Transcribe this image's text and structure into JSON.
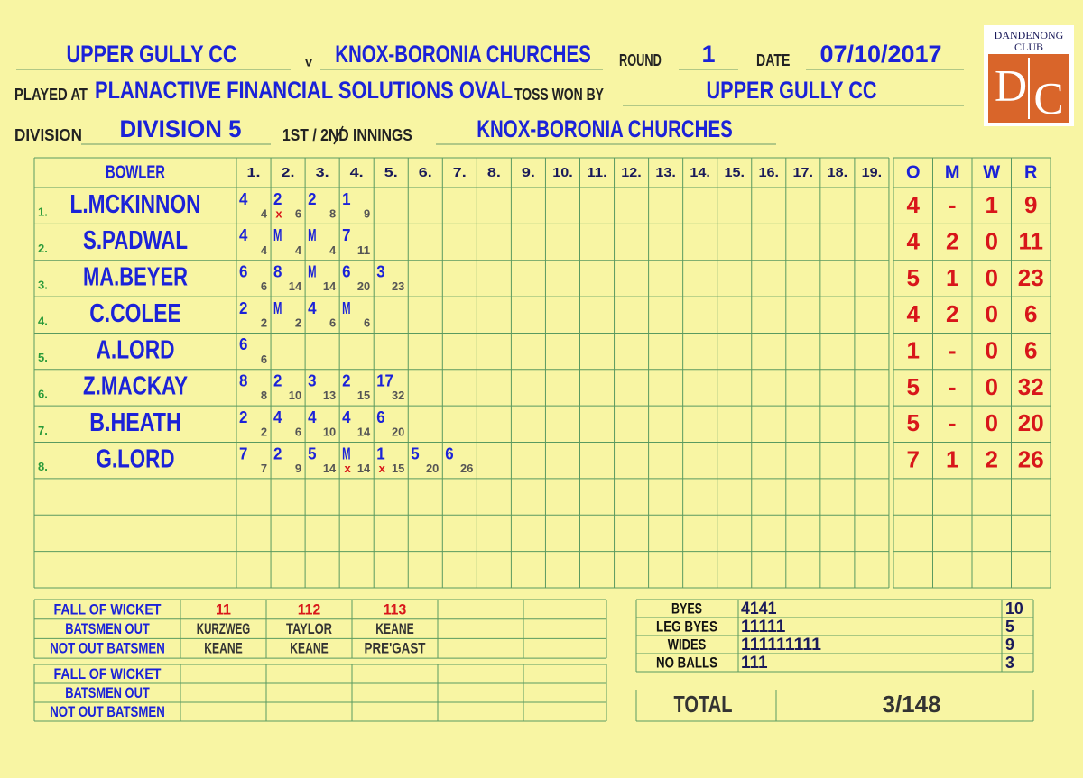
{
  "header": {
    "team1": "UPPER GULLY CC",
    "versus": "v",
    "team2": "KNOX-BORONIA CHURCHES",
    "round_label": "ROUND",
    "round": "1",
    "date_label": "DATE",
    "date": "07/10/2017",
    "ground_label": "PLAYED AT",
    "ground": "PLANACTIVE FINANCIAL SOLUTIONS OVAL",
    "toss_label": "TOSS WON BY",
    "toss": "UPPER GULLY CC",
    "division_label": "DIVISION",
    "division": "DIVISION 5",
    "innings_label": "1ST / 2ND INNINGS",
    "innings": "KNOX-BORONIA CHURCHES"
  },
  "logo": {
    "top": "DANDENONG",
    "club": "CLUB",
    "left": "D",
    "right": "C"
  },
  "bowling": {
    "bowler_label": "BOWLER",
    "over_labels": [
      "1.",
      "2.",
      "3.",
      "4.",
      "5.",
      "6.",
      "7.",
      "8.",
      "9.",
      "10.",
      "11.",
      "12.",
      "13.",
      "14.",
      "15.",
      "16.",
      "17.",
      "18.",
      "19."
    ],
    "stat_labels": [
      "O",
      "M",
      "W",
      "R"
    ],
    "rows": [
      {
        "no": "1.",
        "name": "L.MCKINNON",
        "overs": [
          {
            "runs": "4",
            "total": "4"
          },
          {
            "runs": "2",
            "wicket": "x",
            "total": "6"
          },
          {
            "runs": "2",
            "total": "8"
          },
          {
            "runs": "1",
            "total": "9"
          }
        ],
        "stats": [
          "4",
          "-",
          "1",
          "9"
        ]
      },
      {
        "no": "2.",
        "name": "S.PADWAL",
        "overs": [
          {
            "runs": "4",
            "total": "4"
          },
          {
            "runs": "M",
            "total": "4"
          },
          {
            "runs": "M",
            "total": "4"
          },
          {
            "runs": "7",
            "total": "11"
          }
        ],
        "stats": [
          "4",
          "2",
          "0",
          "11"
        ]
      },
      {
        "no": "3.",
        "name": "MA.BEYER",
        "overs": [
          {
            "runs": "6",
            "total": "6"
          },
          {
            "runs": "8",
            "total": "14"
          },
          {
            "runs": "M",
            "total": "14"
          },
          {
            "runs": "6",
            "total": "20"
          },
          {
            "runs": "3",
            "total": "23"
          }
        ],
        "stats": [
          "5",
          "1",
          "0",
          "23"
        ]
      },
      {
        "no": "4.",
        "name": "C.COLEE",
        "overs": [
          {
            "runs": "2",
            "total": "2"
          },
          {
            "runs": "M",
            "total": "2"
          },
          {
            "runs": "4",
            "total": "6"
          },
          {
            "runs": "M",
            "total": "6"
          }
        ],
        "stats": [
          "4",
          "2",
          "0",
          "6"
        ]
      },
      {
        "no": "5.",
        "name": "A.LORD",
        "overs": [
          {
            "runs": "6",
            "total": "6"
          }
        ],
        "stats": [
          "1",
          "-",
          "0",
          "6"
        ]
      },
      {
        "no": "6.",
        "name": "Z.MACKAY",
        "overs": [
          {
            "runs": "8",
            "total": "8"
          },
          {
            "runs": "2",
            "total": "10"
          },
          {
            "runs": "3",
            "total": "13"
          },
          {
            "runs": "2",
            "total": "15"
          },
          {
            "runs": "17",
            "total": "32"
          }
        ],
        "stats": [
          "5",
          "-",
          "0",
          "32"
        ]
      },
      {
        "no": "7.",
        "name": "B.HEATH",
        "overs": [
          {
            "runs": "2",
            "total": "2"
          },
          {
            "runs": "4",
            "total": "6"
          },
          {
            "runs": "4",
            "total": "10"
          },
          {
            "runs": "4",
            "total": "14"
          },
          {
            "runs": "6",
            "total": "20"
          }
        ],
        "stats": [
          "5",
          "-",
          "0",
          "20"
        ]
      },
      {
        "no": "8.",
        "name": "G.LORD",
        "overs": [
          {
            "runs": "7",
            "total": "7"
          },
          {
            "runs": "2",
            "total": "9"
          },
          {
            "runs": "5",
            "total": "14"
          },
          {
            "runs": "M",
            "wicket": "x",
            "total": "14"
          },
          {
            "runs": "1",
            "wicket": "x",
            "total": "15"
          },
          {
            "runs": "5",
            "total": "20"
          },
          {
            "runs": "6",
            "total": "26"
          }
        ],
        "stats": [
          "7",
          "1",
          "2",
          "26"
        ]
      }
    ]
  },
  "fall_of_wickets": [
    {
      "labels": [
        "FALL OF WICKET",
        "BATSMEN OUT",
        "NOT OUT BATSMEN"
      ],
      "columns": [
        {
          "score": "11",
          "out": "KURZWEG",
          "not_out": "KEANE"
        },
        {
          "score": "112",
          "out": "TAYLOR",
          "not_out": "KEANE"
        },
        {
          "score": "113",
          "out": "KEANE",
          "not_out": "PRE'GAST"
        }
      ]
    },
    {
      "labels": [
        "FALL OF WICKET",
        "BATSMEN OUT",
        "NOT OUT BATSMEN"
      ]
    }
  ],
  "extras": {
    "rows": [
      {
        "label": "BYES",
        "tally": "4141",
        "total": "10"
      },
      {
        "label": "LEG BYES",
        "tally": "11111",
        "total": "5"
      },
      {
        "label": "WIDES",
        "tally": "111111111",
        "total": "9"
      },
      {
        "label": "NO BALLS",
        "tally": "111",
        "total": "3"
      }
    ],
    "total_label": "TOTAL",
    "total": "3/148"
  }
}
